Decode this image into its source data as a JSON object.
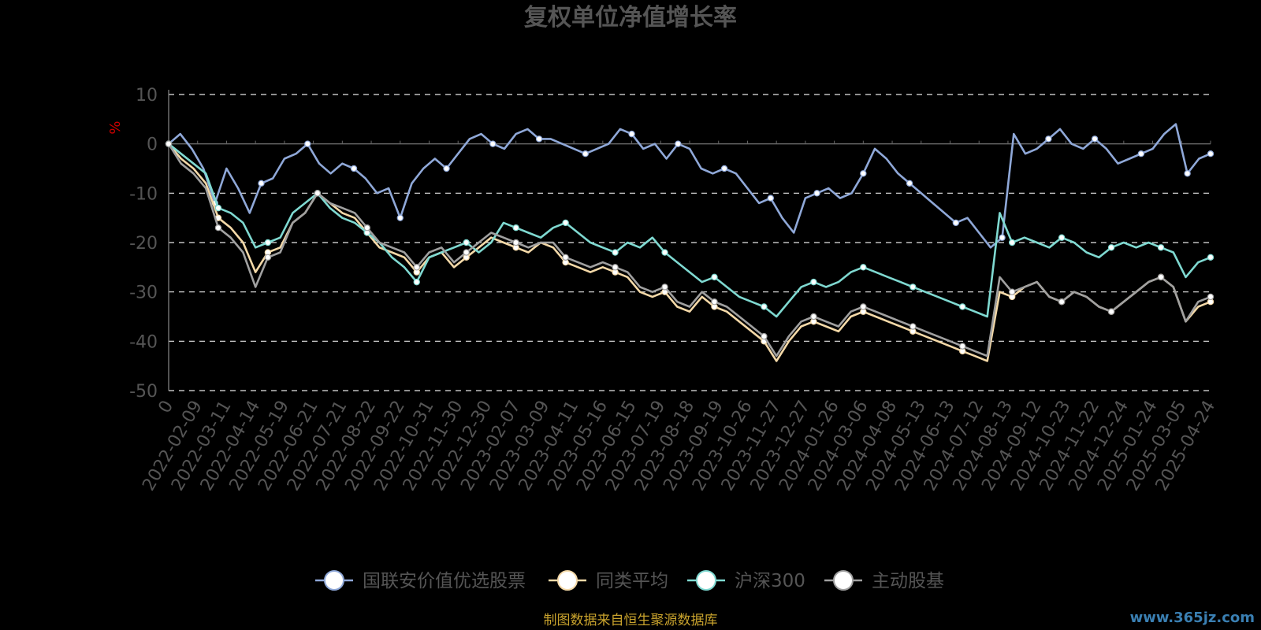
{
  "chart_data": {
    "type": "line",
    "title": "复权单位净值增长率",
    "ylabel": "%",
    "ylim": [
      -50,
      10
    ],
    "yticks": [
      10,
      0,
      -10,
      -20,
      -30,
      -40,
      -50
    ],
    "x_labels": [
      "0",
      "2022-02-09",
      "2022-03-11",
      "2022-04-14",
      "2022-05-19",
      "2022-06-21",
      "2022-07-21",
      "2022-08-22",
      "2022-09-22",
      "2022-10-31",
      "2022-11-30",
      "2022-12-30",
      "2023-02-07",
      "2023-03-09",
      "2023-04-11",
      "2023-05-16",
      "2023-06-15",
      "2023-07-19",
      "2023-08-18",
      "2023-09-19",
      "2023-10-26",
      "2023-11-27",
      "2023-12-27",
      "2024-01-26",
      "2024-03-06",
      "2024-04-08",
      "2024-05-13",
      "2024-06-13",
      "2024-07-12",
      "2024-08-13",
      "2024-09-12",
      "2024-10-23",
      "2024-11-22",
      "2024-12-24",
      "2025-01-24",
      "2025-03-05",
      "2025-04-24"
    ],
    "grid": "horizontal-dashed",
    "legend_position": "bottom",
    "series": [
      {
        "name": "国联安价值优选股票",
        "color": "#8fa8d8",
        "values": [
          0,
          2,
          -1,
          -5,
          -12,
          -5,
          -9,
          -14,
          -8,
          -7,
          -3,
          -2,
          0,
          -4,
          -6,
          -4,
          -5,
          -7,
          -10,
          -9,
          -15,
          -8,
          -5,
          -3,
          -5,
          -2,
          1,
          2,
          0,
          -1,
          2,
          3,
          1,
          1,
          0,
          -1,
          -2,
          -1,
          0,
          3,
          2,
          -1,
          0,
          -3,
          0,
          -1,
          -5,
          -6,
          -5,
          -6,
          -9,
          -12,
          -11,
          -15,
          -18,
          -11,
          -10,
          -9,
          -11,
          -10,
          -6,
          -1,
          -3,
          -6,
          -8,
          -10,
          -12,
          -14,
          -16,
          -15,
          -18,
          -21,
          -19,
          2,
          -2,
          -1,
          1,
          3,
          0,
          -1,
          1,
          -1,
          -4,
          -3,
          -2,
          -1,
          2,
          4,
          -6,
          -3,
          -2
        ]
      },
      {
        "name": "同类平均",
        "color": "#f4d9a8",
        "values": [
          0,
          -3,
          -5,
          -8,
          -15,
          -17,
          -20,
          -26,
          -22,
          -21,
          -16,
          -14,
          -10,
          -12,
          -14,
          -15,
          -18,
          -21,
          -22,
          -23,
          -26,
          -23,
          -22,
          -25,
          -23,
          -21,
          -19,
          -20,
          -21,
          -22,
          -20,
          -21,
          -24,
          -25,
          -26,
          -25,
          -26,
          -27,
          -30,
          -31,
          -30,
          -33,
          -34,
          -31,
          -33,
          -34,
          -36,
          -38,
          -40,
          -44,
          -40,
          -37,
          -36,
          -37,
          -38,
          -35,
          -34,
          -35,
          -36,
          -37,
          -38,
          -39,
          -40,
          -41,
          -42,
          -43,
          -44,
          -30,
          -31,
          -29,
          -28,
          -31,
          -32,
          -30,
          -31,
          -33,
          -34,
          -32,
          -30,
          -28,
          -27,
          -29,
          -36,
          -33,
          -32
        ]
      },
      {
        "name": "沪深300",
        "color": "#7fd9d1",
        "values": [
          0,
          -2,
          -4,
          -6,
          -13,
          -14,
          -16,
          -21,
          -20,
          -19,
          -14,
          -12,
          -10,
          -13,
          -15,
          -16,
          -18,
          -20,
          -23,
          -25,
          -28,
          -23,
          -22,
          -21,
          -20,
          -22,
          -20,
          -16,
          -17,
          -18,
          -19,
          -17,
          -16,
          -18,
          -20,
          -21,
          -22,
          -20,
          -21,
          -19,
          -22,
          -24,
          -26,
          -28,
          -27,
          -29,
          -31,
          -32,
          -33,
          -35,
          -32,
          -29,
          -28,
          -29,
          -28,
          -26,
          -25,
          -26,
          -27,
          -28,
          -29,
          -30,
          -31,
          -32,
          -33,
          -34,
          -35,
          -14,
          -20,
          -19,
          -20,
          -21,
          -19,
          -20,
          -22,
          -23,
          -21,
          -20,
          -21,
          -20,
          -21,
          -22,
          -27,
          -24,
          -23
        ]
      },
      {
        "name": "主动股基",
        "color": "#a0a0a0",
        "values": [
          0,
          -4,
          -6,
          -9,
          -17,
          -19,
          -22,
          -29,
          -23,
          -22,
          -16,
          -14,
          -10,
          -12,
          -13,
          -14,
          -17,
          -20,
          -21,
          -22,
          -25,
          -22,
          -21,
          -24,
          -22,
          -20,
          -18,
          -19,
          -20,
          -21,
          -20,
          -20,
          -23,
          -24,
          -25,
          -24,
          -25,
          -26,
          -29,
          -30,
          -29,
          -32,
          -33,
          -30,
          -32,
          -33,
          -35,
          -37,
          -39,
          -43,
          -39,
          -36,
          -35,
          -36,
          -37,
          -34,
          -33,
          -34,
          -35,
          -36,
          -37,
          -38,
          -39,
          -40,
          -41,
          -42,
          -43,
          -27,
          -30,
          -29,
          -28,
          -31,
          -32,
          -30,
          -31,
          -33,
          -34,
          -32,
          -30,
          -28,
          -27,
          -29,
          -36,
          -32,
          -31
        ]
      }
    ]
  },
  "source_note": "制图数据来自恒生聚源数据库",
  "watermark": "www.365jz.com"
}
